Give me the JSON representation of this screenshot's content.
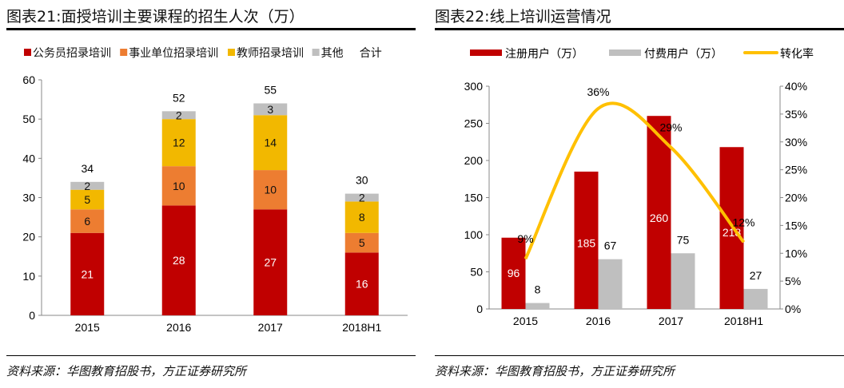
{
  "chart_data": [
    {
      "type": "bar",
      "stacked": true,
      "title": "图表21:面授培训主要课程的招生人次（万）",
      "categories": [
        "2015",
        "2016",
        "2017",
        "2018H1"
      ],
      "series": [
        {
          "name": "公务员招录培训",
          "values": [
            21,
            28,
            27,
            16
          ],
          "color": "#C00000"
        },
        {
          "name": "事业单位招录培训",
          "values": [
            6,
            10,
            10,
            5
          ],
          "color": "#ED7D31"
        },
        {
          "name": "教师招录培训",
          "values": [
            5,
            12,
            14,
            8
          ],
          "color": "#F2B800"
        },
        {
          "name": "其他",
          "values": [
            2,
            2,
            3,
            2
          ],
          "color": "#BFBFBF"
        }
      ],
      "totals_label": "合计",
      "totals": [
        34,
        52,
        55,
        30
      ],
      "ylim": [
        0,
        60
      ],
      "yticks": [
        0,
        10,
        20,
        30,
        40,
        50,
        60
      ],
      "legend": "top",
      "grid": false,
      "source": "资料来源：华图教育招股书，方正证券研究所"
    },
    {
      "type": "bar+line",
      "title": "图表22:线上培训运营情况",
      "categories": [
        "2015",
        "2016",
        "2017",
        "2018H1"
      ],
      "series": [
        {
          "name": "注册用户（万）",
          "values": [
            96,
            185,
            260,
            218
          ],
          "color": "#C00000",
          "axis": "left"
        },
        {
          "name": "付费用户（万）",
          "values": [
            8,
            67,
            75,
            27
          ],
          "color": "#BFBFBF",
          "axis": "left"
        },
        {
          "name": "转化率",
          "values": [
            9,
            36,
            29,
            12
          ],
          "labels": [
            "9%",
            "36%",
            "29%",
            "12%"
          ],
          "color": "#FFC000",
          "axis": "right",
          "type": "line"
        }
      ],
      "ylim": [
        0,
        300
      ],
      "yticks": [
        0,
        50,
        100,
        150,
        200,
        250,
        300
      ],
      "y2lim": [
        0,
        40
      ],
      "y2ticks": [
        "0%",
        "5%",
        "10%",
        "15%",
        "20%",
        "25%",
        "30%",
        "35%",
        "40%"
      ],
      "legend": "top",
      "grid": false,
      "source": "资料来源：华图教育招股书，方正证券研究所"
    }
  ]
}
